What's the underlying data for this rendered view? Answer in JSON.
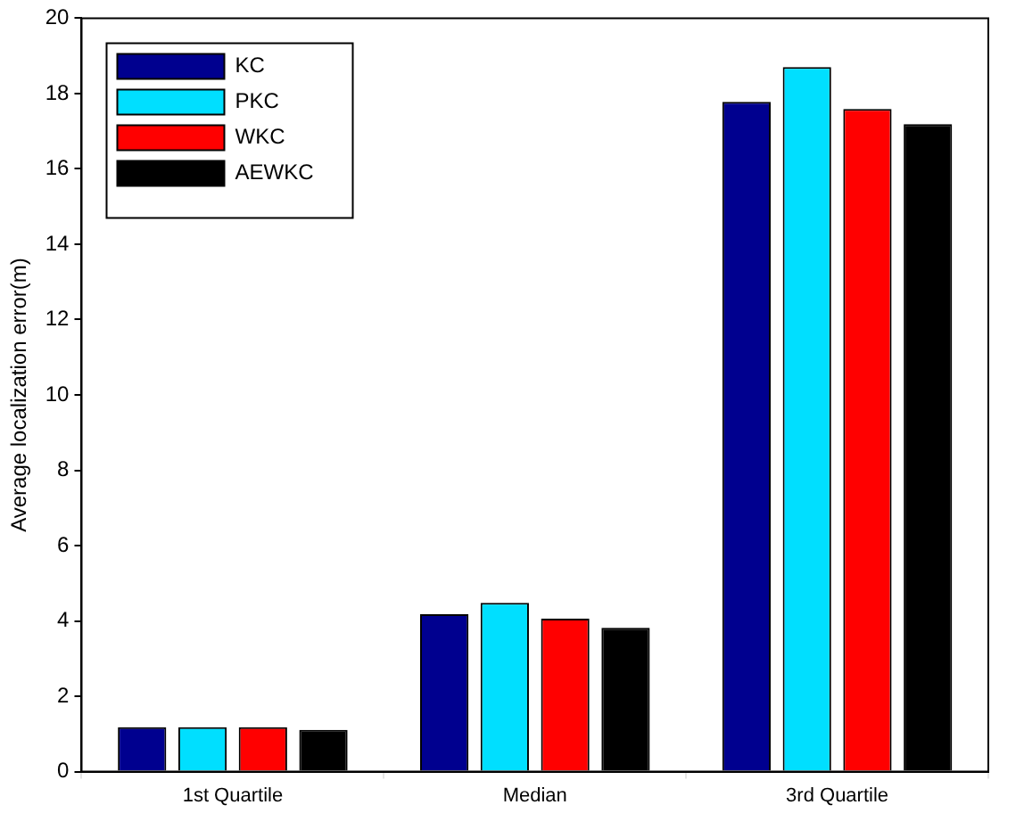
{
  "chart_data": {
    "type": "bar",
    "ylabel": "Average localization error(m)",
    "categories": [
      "1st Quartile",
      "Median",
      "3rd Quartile"
    ],
    "series": [
      {
        "name": "KC",
        "color": "#00008f",
        "values": [
          1.18,
          4.18,
          17.78
        ]
      },
      {
        "name": "PKC",
        "color": "#00dfff",
        "values": [
          1.18,
          4.48,
          18.7
        ]
      },
      {
        "name": "WKC",
        "color": "#ff0000",
        "values": [
          1.18,
          4.06,
          17.59
        ]
      },
      {
        "name": "AEWKC",
        "color": "#000000",
        "values": [
          1.11,
          3.82,
          17.19
        ]
      }
    ],
    "ylim": [
      0,
      20
    ],
    "yticks": [
      0,
      2,
      4,
      6,
      8,
      10,
      12,
      14,
      16,
      18,
      20
    ],
    "grid": false,
    "legend": "top left"
  }
}
